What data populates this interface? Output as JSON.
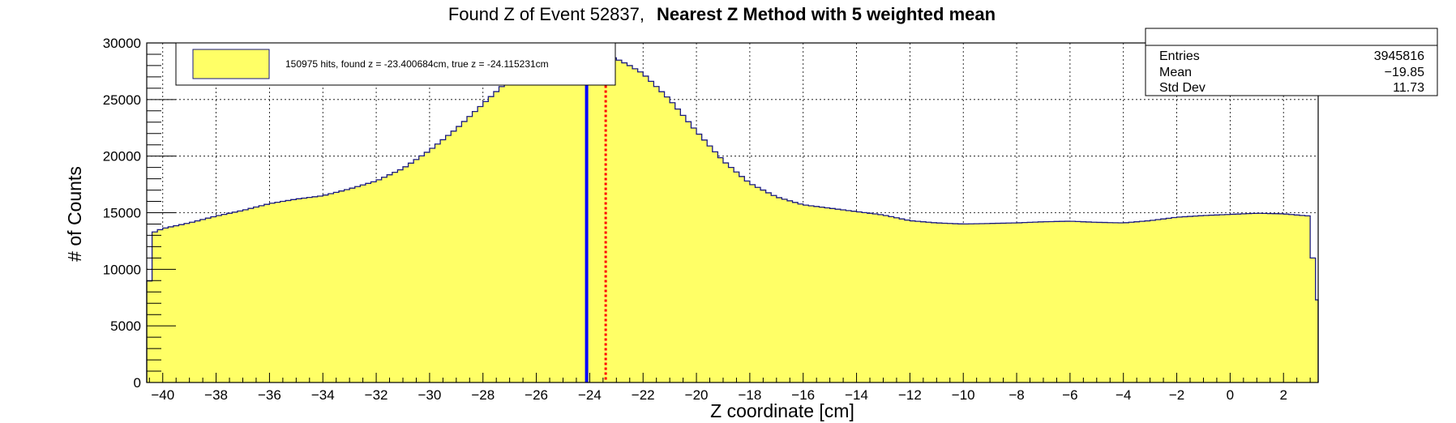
{
  "chart_data": {
    "type": "bar",
    "title": "Found Z of Event 52837,",
    "title_bold": "Nearest Z Method with 5 weighted mean",
    "xlabel": "Z coordinate [cm]",
    "ylabel": "# of Counts",
    "xlim": [
      -40.6,
      3.3
    ],
    "ylim": [
      0,
      30000
    ],
    "xticks": [
      -40,
      -38,
      -36,
      -34,
      -32,
      -30,
      -28,
      -26,
      -24,
      -22,
      -20,
      -18,
      -16,
      -14,
      -12,
      -10,
      -8,
      -6,
      -4,
      -2,
      0,
      2
    ],
    "yticks": [
      0,
      5000,
      10000,
      15000,
      20000,
      25000,
      30000
    ],
    "grid": true,
    "fill_color": "#ffff66",
    "line_color": "#1a1a80",
    "bin_width": 0.2,
    "curve_x": [
      -40.6,
      -40.3,
      -40.0,
      -39.0,
      -38.0,
      -37.0,
      -36.0,
      -35.0,
      -34.0,
      -33.0,
      -32.0,
      -31.0,
      -30.0,
      -29.0,
      -28.0,
      -27.0,
      -26.0,
      -25.0,
      -24.4,
      -24.0,
      -23.6,
      -23.0,
      -22.5,
      -22.0,
      -21.0,
      -20.0,
      -19.0,
      -18.0,
      -17.0,
      -16.0,
      -15.0,
      -14.0,
      -13.0,
      -12.0,
      -11.0,
      -10.0,
      -9.0,
      -8.0,
      -7.0,
      -6.0,
      -5.0,
      -4.0,
      -3.0,
      -2.0,
      -1.0,
      0.0,
      1.0,
      2.0,
      3.0,
      3.2
    ],
    "curve_y": [
      6800,
      13300,
      13600,
      14100,
      14700,
      15200,
      15800,
      16200,
      16500,
      17100,
      17800,
      18900,
      20500,
      22400,
      24600,
      26800,
      28300,
      29200,
      29500,
      29300,
      29100,
      28600,
      28000,
      27300,
      25000,
      22200,
      19600,
      17600,
      16400,
      15700,
      15400,
      15100,
      14800,
      14300,
      14100,
      14000,
      14050,
      14100,
      14200,
      14250,
      14150,
      14100,
      14300,
      14600,
      14750,
      14850,
      14950,
      14900,
      14700,
      7300
    ],
    "true_z": -24.115231,
    "found_z": -23.400684,
    "true_z_color": "#0000ff",
    "found_z_color": "#ff0000",
    "legend": {
      "text": "150975 hits, found z = -23.400684cm, true z = -24.115231cm",
      "position": "top-left"
    },
    "stats": {
      "position": "top-right",
      "rows": [
        {
          "label": "Entries",
          "value": "3945816"
        },
        {
          "label": "Mean",
          "value": "−19.85"
        },
        {
          "label": "Std Dev",
          "value": "11.73"
        }
      ]
    }
  }
}
